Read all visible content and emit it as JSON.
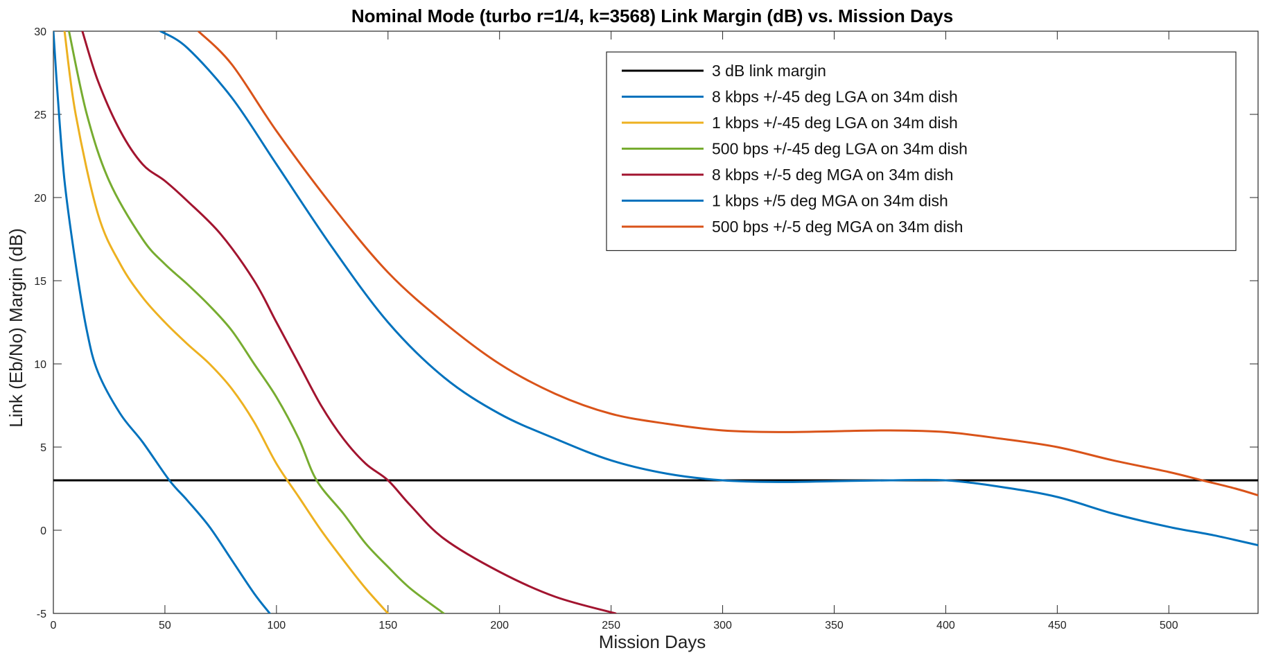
{
  "chart_data": {
    "type": "line",
    "title": "Nominal Mode (turbo r=1/4, k=3568) Link Margin (dB) vs. Mission Days",
    "xlabel": "Mission Days",
    "ylabel": "Link (Eb/No) Margin (dB)",
    "xlim": [
      0,
      540
    ],
    "ylim": [
      -5,
      30
    ],
    "xticks": [
      0,
      50,
      100,
      150,
      200,
      250,
      300,
      350,
      400,
      450,
      500
    ],
    "yticks": [
      -5,
      0,
      5,
      10,
      15,
      20,
      25,
      30
    ],
    "grid": false,
    "legend_position": "top-right",
    "series": [
      {
        "name": "3 dB link margin",
        "color": "#000000",
        "points": [
          [
            0,
            3
          ],
          [
            540,
            3
          ]
        ]
      },
      {
        "name": "8 kbps +/-45 deg LGA on 34m dish",
        "color": "#0072BD",
        "points": [
          [
            0,
            30
          ],
          [
            2,
            26
          ],
          [
            5,
            21
          ],
          [
            10,
            16
          ],
          [
            15,
            12
          ],
          [
            20,
            9.5
          ],
          [
            30,
            7
          ],
          [
            40,
            5.3
          ],
          [
            52,
            3
          ],
          [
            60,
            1.8
          ],
          [
            70,
            0.2
          ],
          [
            80,
            -1.8
          ],
          [
            90,
            -3.8
          ],
          [
            97,
            -5
          ]
        ]
      },
      {
        "name": "1 kbps +/-45 deg LGA on 34m dish",
        "color": "#EDB120",
        "points": [
          [
            5,
            30
          ],
          [
            10,
            25
          ],
          [
            20,
            19
          ],
          [
            30,
            16
          ],
          [
            40,
            14
          ],
          [
            50,
            12.5
          ],
          [
            60,
            11.2
          ],
          [
            70,
            10
          ],
          [
            80,
            8.5
          ],
          [
            90,
            6.5
          ],
          [
            100,
            4
          ],
          [
            110,
            2
          ],
          [
            120,
            0
          ],
          [
            130,
            -1.8
          ],
          [
            140,
            -3.5
          ],
          [
            150,
            -5
          ]
        ]
      },
      {
        "name": "500 bps +/-45 deg LGA on 34m dish",
        "color": "#77AC30",
        "points": [
          [
            7,
            30
          ],
          [
            15,
            25
          ],
          [
            25,
            21
          ],
          [
            40,
            17.5
          ],
          [
            50,
            16
          ],
          [
            60,
            14.8
          ],
          [
            70,
            13.5
          ],
          [
            80,
            12
          ],
          [
            90,
            10
          ],
          [
            100,
            8
          ],
          [
            110,
            5.5
          ],
          [
            118,
            3
          ],
          [
            130,
            1
          ],
          [
            140,
            -0.8
          ],
          [
            150,
            -2.2
          ],
          [
            160,
            -3.5
          ],
          [
            175,
            -5
          ]
        ]
      },
      {
        "name": "8 kbps +/-5 deg MGA on 34m dish",
        "color": "#A2142F",
        "points": [
          [
            13,
            30
          ],
          [
            20,
            27
          ],
          [
            30,
            24
          ],
          [
            40,
            22
          ],
          [
            50,
            21
          ],
          [
            60,
            19.8
          ],
          [
            75,
            17.8
          ],
          [
            90,
            15
          ],
          [
            100,
            12.5
          ],
          [
            110,
            10
          ],
          [
            120,
            7.5
          ],
          [
            130,
            5.5
          ],
          [
            140,
            4
          ],
          [
            150,
            3
          ],
          [
            160,
            1.5
          ],
          [
            175,
            -0.5
          ],
          [
            200,
            -2.5
          ],
          [
            225,
            -4
          ],
          [
            252,
            -5
          ]
        ]
      },
      {
        "name": "1 kbps +/5 deg MGA on 34m dish",
        "color": "#0072BD",
        "points": [
          [
            48,
            30
          ],
          [
            60,
            29
          ],
          [
            80,
            26
          ],
          [
            100,
            22
          ],
          [
            125,
            17
          ],
          [
            150,
            12.5
          ],
          [
            175,
            9.2
          ],
          [
            200,
            7
          ],
          [
            225,
            5.5
          ],
          [
            250,
            4.2
          ],
          [
            275,
            3.4
          ],
          [
            300,
            3
          ],
          [
            325,
            2.9
          ],
          [
            350,
            2.95
          ],
          [
            375,
            3
          ],
          [
            400,
            3
          ],
          [
            425,
            2.6
          ],
          [
            450,
            2
          ],
          [
            475,
            1
          ],
          [
            500,
            0.2
          ],
          [
            520,
            -0.3
          ],
          [
            540,
            -0.9
          ]
        ]
      },
      {
        "name": "500 bps +/-5 deg MGA on 34m dish",
        "color": "#D95319",
        "points": [
          [
            65,
            30
          ],
          [
            80,
            28
          ],
          [
            100,
            24
          ],
          [
            125,
            19.5
          ],
          [
            150,
            15.5
          ],
          [
            175,
            12.5
          ],
          [
            200,
            10
          ],
          [
            225,
            8.2
          ],
          [
            250,
            7
          ],
          [
            275,
            6.4
          ],
          [
            300,
            6
          ],
          [
            325,
            5.9
          ],
          [
            350,
            5.95
          ],
          [
            375,
            6
          ],
          [
            400,
            5.9
          ],
          [
            425,
            5.5
          ],
          [
            450,
            5
          ],
          [
            475,
            4.2
          ],
          [
            500,
            3.5
          ],
          [
            515,
            3
          ],
          [
            530,
            2.5
          ],
          [
            540,
            2.1
          ]
        ]
      }
    ]
  }
}
